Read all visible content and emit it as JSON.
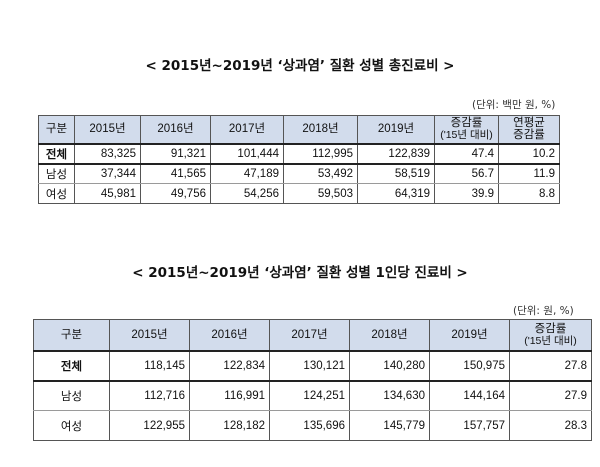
{
  "section1": {
    "title": "< 2015년~2019년 ‘상과염’ 질환 성별 총진료비 >",
    "unit": "(단위: 백만 원, %)",
    "headers": [
      "구분",
      "2015년",
      "2016년",
      "2017년",
      "2018년",
      "2019년",
      "증감률",
      "('15년 대비)",
      "연평균",
      "증감률"
    ],
    "rows": [
      {
        "label": "전체",
        "cells": [
          "83,325",
          "91,321",
          "101,444",
          "112,995",
          "122,839",
          "47.4",
          "10.2"
        ]
      },
      {
        "label": "남성",
        "cells": [
          "37,344",
          "41,565",
          "47,189",
          "53,492",
          "58,519",
          "56.7",
          "11.9"
        ]
      },
      {
        "label": "여성",
        "cells": [
          "45,981",
          "49,756",
          "54,256",
          "59,503",
          "64,319",
          "39.9",
          "8.8"
        ]
      }
    ]
  },
  "section2": {
    "title": "< 2015년~2019년 ‘상과염’ 질환 성별 1인당 진료비 >",
    "unit": "(단위: 원, %)",
    "headers": [
      "구분",
      "2015년",
      "2016년",
      "2017년",
      "2018년",
      "2019년",
      "증감률",
      "('15년 대비)"
    ],
    "rows": [
      {
        "label": "전체",
        "cells": [
          "118,145",
          "122,834",
          "130,121",
          "140,280",
          "150,975",
          "27.8"
        ]
      },
      {
        "label": "남성",
        "cells": [
          "112,716",
          "116,991",
          "124,251",
          "134,630",
          "144,164",
          "27.9"
        ]
      },
      {
        "label": "여성",
        "cells": [
          "122,955",
          "128,182",
          "135,696",
          "145,779",
          "157,757",
          "28.3"
        ]
      }
    ]
  }
}
